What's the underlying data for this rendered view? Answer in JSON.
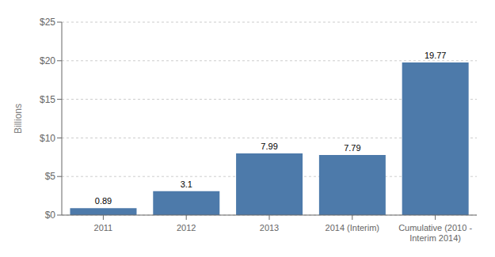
{
  "chart_data": {
    "type": "bar",
    "categories": [
      "2011",
      "2012",
      "2013",
      "2014 (Interim)",
      "Cumulative (2010 -\nInterim 2014)"
    ],
    "values": [
      0.89,
      3.1,
      7.99,
      7.79,
      19.77
    ],
    "color": "#4d7aaa",
    "ylabel": "Billions",
    "ylim": [
      0,
      25
    ],
    "yticks": [
      {
        "value": 0,
        "label": "$0"
      },
      {
        "value": 5,
        "label": "$5"
      },
      {
        "value": 10,
        "label": "$10"
      },
      {
        "value": 15,
        "label": "$15"
      },
      {
        "value": 20,
        "label": "$20"
      },
      {
        "value": 25,
        "label": "$25"
      }
    ],
    "grid": true,
    "data_labels": true
  }
}
